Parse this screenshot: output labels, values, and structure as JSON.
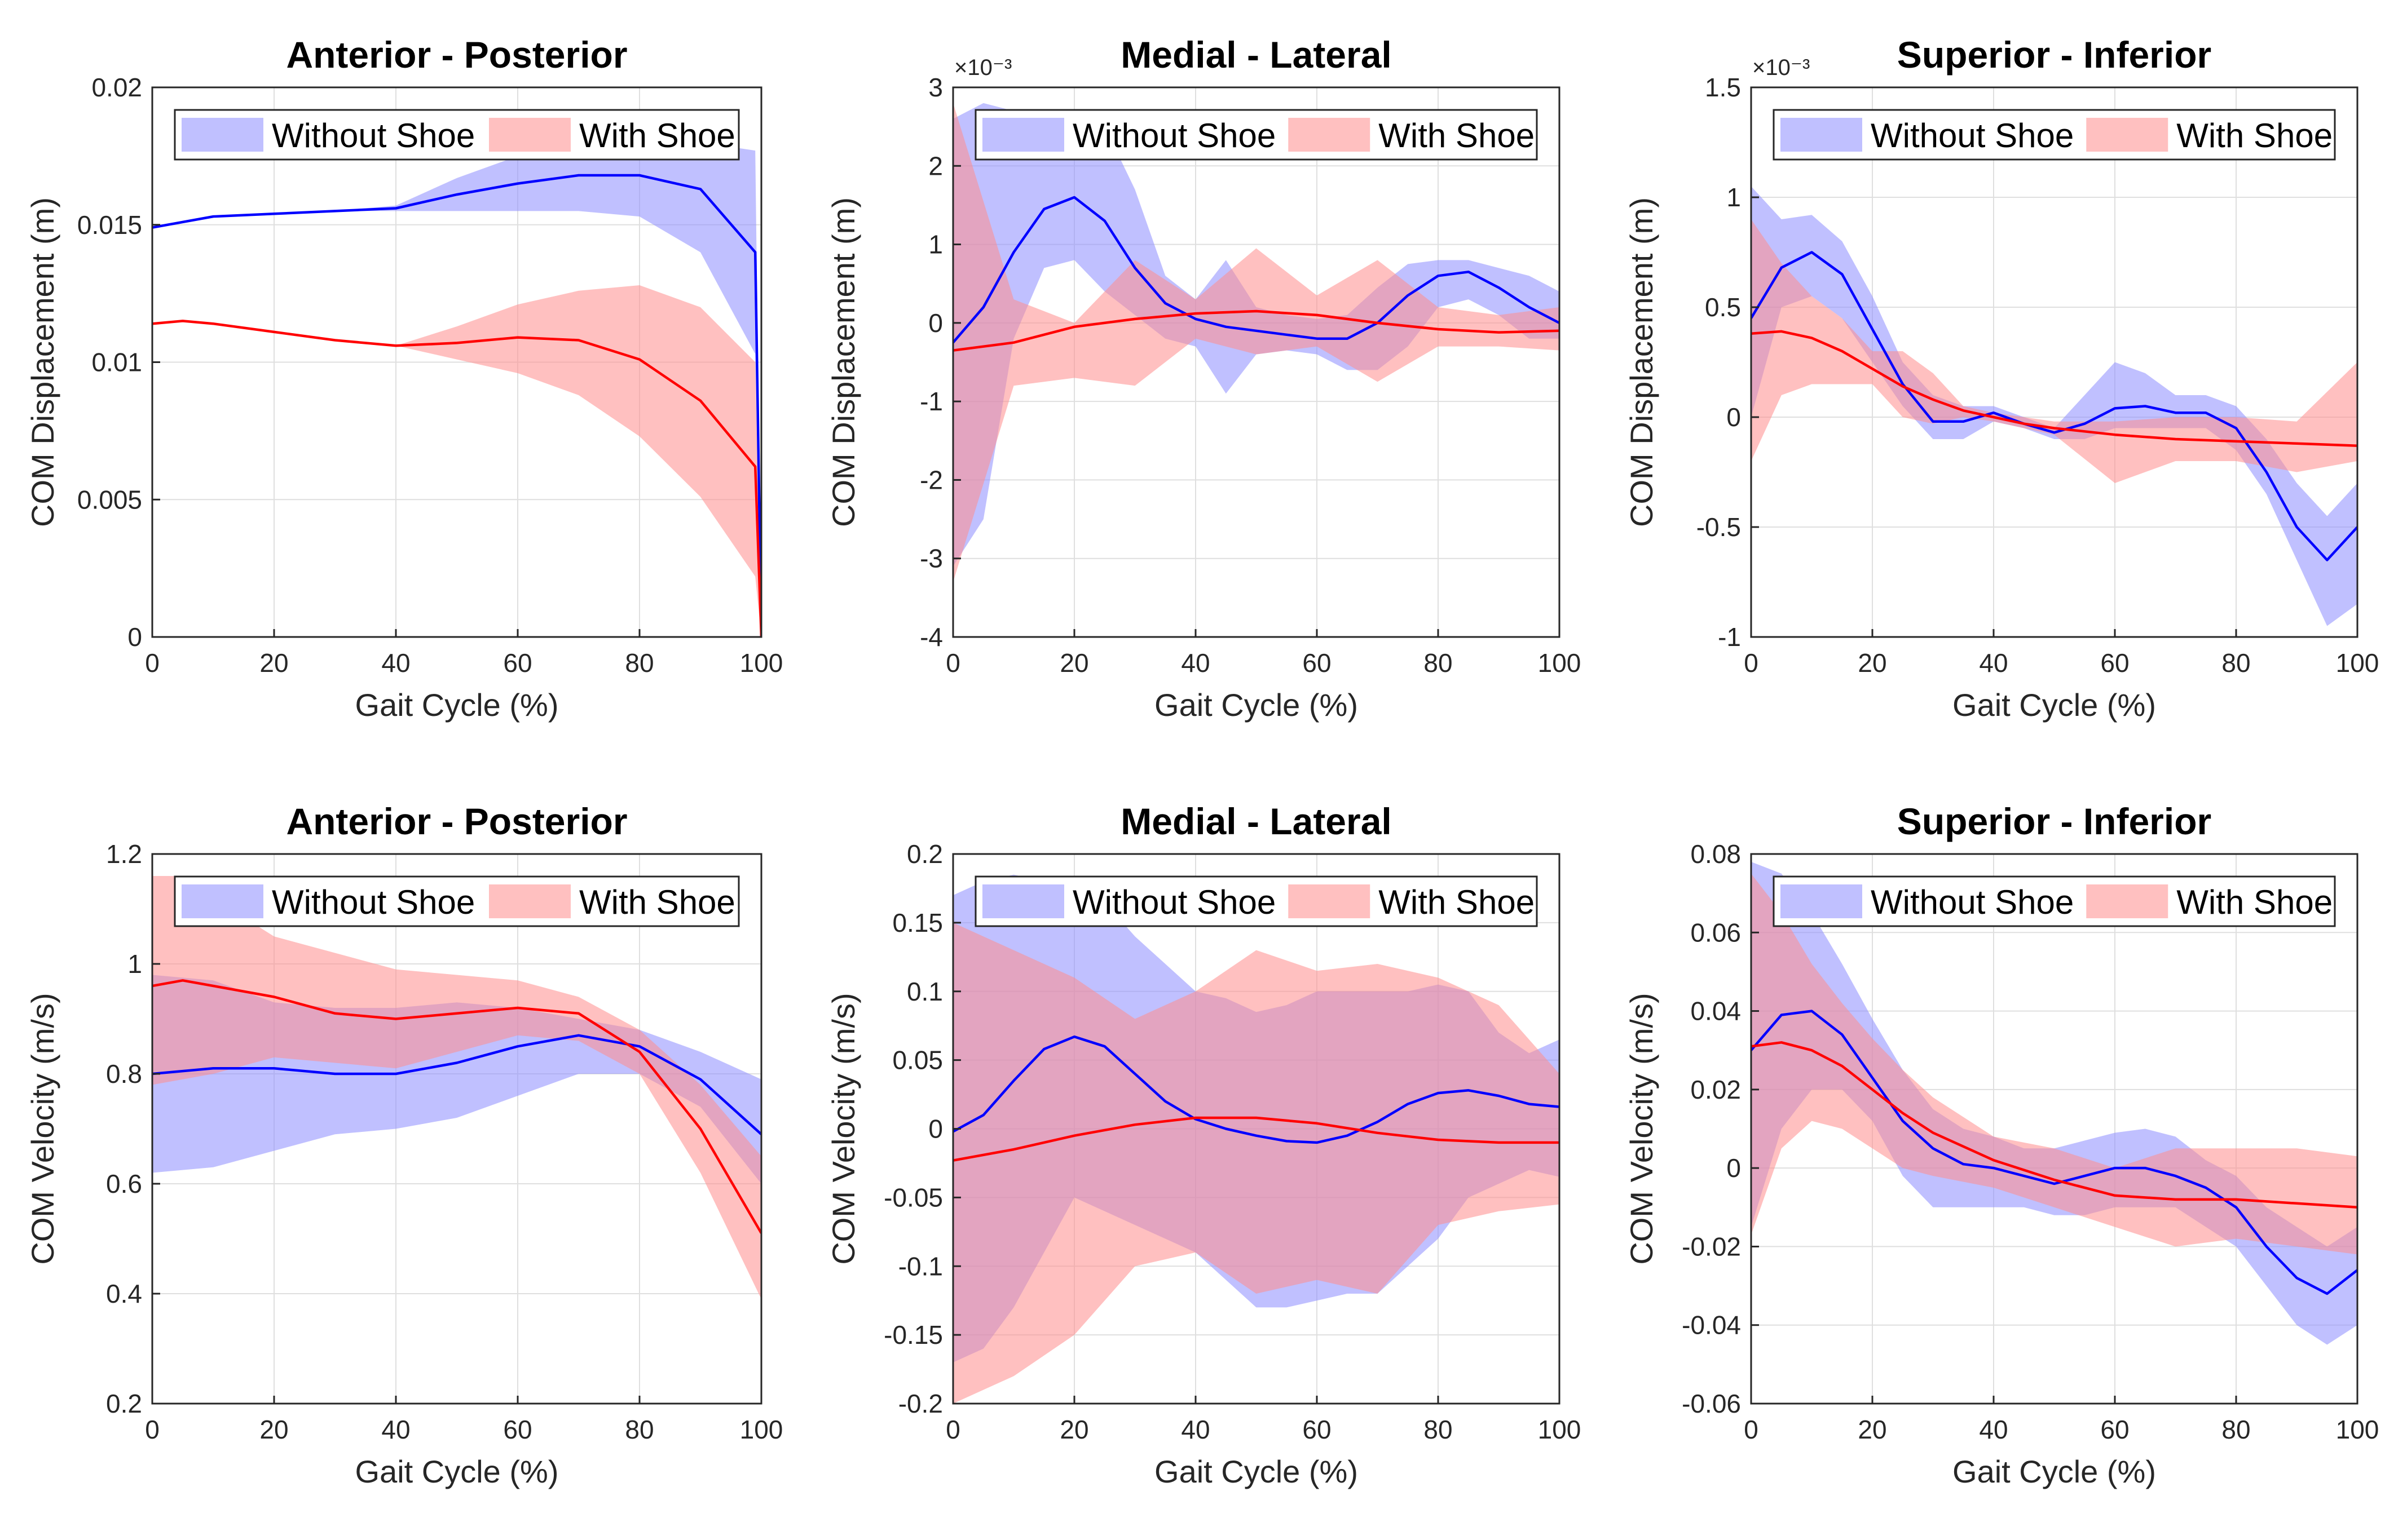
{
  "figure": {
    "colors": {
      "without_shoe": "#0000ff",
      "with_shoe": "#ff0000",
      "without_fill": "#8c8cff",
      "with_fill": "#ff8c8c"
    },
    "legend": [
      "Without Shoe",
      "With Shoe"
    ]
  },
  "chart_data": [
    {
      "type": "line",
      "panel": "top-left",
      "title": "Anterior - Posterior",
      "xlabel": "Gait Cycle (%)",
      "ylabel": "COM Displacement (m)",
      "xlim": [
        0,
        100
      ],
      "ylim": [
        0,
        0.02
      ],
      "xticks": [
        0,
        20,
        40,
        60,
        80,
        100
      ],
      "yticks": [
        0,
        0.005,
        0.01,
        0.015,
        0.02
      ],
      "ytick_labels": [
        "0",
        "0.005",
        "0.01",
        "0.015",
        "0.02"
      ],
      "exponent": "",
      "legend_position": "top",
      "series": [
        {
          "name": "Without Shoe",
          "x": [
            0,
            10,
            20,
            30,
            40,
            50,
            60,
            70,
            80,
            90,
            99,
            100
          ],
          "mean": [
            0.0149,
            0.0153,
            0.0154,
            0.0155,
            0.0156,
            0.0161,
            0.0165,
            0.0168,
            0.0168,
            0.0163,
            0.014,
            0.0
          ],
          "upper": [
            0.0149,
            0.0153,
            0.0154,
            0.0155,
            0.0157,
            0.0167,
            0.0175,
            0.018,
            0.0181,
            0.018,
            0.0177,
            0.0
          ],
          "lower": [
            0.0149,
            0.0153,
            0.0154,
            0.0155,
            0.0155,
            0.0155,
            0.0155,
            0.0155,
            0.0153,
            0.014,
            0.0103,
            0.0
          ]
        },
        {
          "name": "With Shoe",
          "x": [
            0,
            5,
            10,
            20,
            30,
            40,
            50,
            60,
            70,
            80,
            90,
            99,
            100
          ],
          "mean": [
            0.0114,
            0.0115,
            0.0114,
            0.0111,
            0.0108,
            0.0106,
            0.0107,
            0.0109,
            0.0108,
            0.0101,
            0.0086,
            0.0062,
            0.0
          ],
          "upper": [
            0.0114,
            0.0115,
            0.0114,
            0.0111,
            0.0108,
            0.0106,
            0.0113,
            0.0121,
            0.0126,
            0.0128,
            0.012,
            0.01,
            0.0
          ],
          "lower": [
            0.0114,
            0.0115,
            0.0114,
            0.0111,
            0.0108,
            0.0106,
            0.0101,
            0.0096,
            0.0088,
            0.0073,
            0.0051,
            0.0022,
            0.0
          ]
        }
      ]
    },
    {
      "type": "line",
      "panel": "top-middle",
      "title": "Medial - Lateral",
      "xlabel": "Gait Cycle (%)",
      "ylabel": "COM Displacement (m)",
      "xlim": [
        0,
        100
      ],
      "ylim": [
        -4,
        3
      ],
      "xticks": [
        0,
        20,
        40,
        60,
        80,
        100
      ],
      "yticks": [
        -4,
        -3,
        -2,
        -1,
        0,
        1,
        2,
        3
      ],
      "ytick_labels": [
        "-4",
        "-3",
        "-2",
        "-1",
        "0",
        "1",
        "2",
        "3"
      ],
      "exponent": "×10⁻³",
      "legend_position": "top",
      "series": [
        {
          "name": "Without Shoe",
          "x": [
            0,
            5,
            10,
            15,
            20,
            25,
            30,
            35,
            40,
            45,
            50,
            55,
            60,
            65,
            70,
            75,
            80,
            85,
            90,
            95,
            100
          ],
          "mean": [
            -0.25,
            0.2,
            0.9,
            1.45,
            1.6,
            1.3,
            0.7,
            0.25,
            0.05,
            -0.05,
            -0.1,
            -0.15,
            -0.2,
            -0.2,
            0.0,
            0.35,
            0.6,
            0.65,
            0.45,
            0.2,
            0.0
          ],
          "upper": [
            2.6,
            2.8,
            2.7,
            2.4,
            2.6,
            2.5,
            1.7,
            0.6,
            0.3,
            0.8,
            0.2,
            0.1,
            0.05,
            0.1,
            0.45,
            0.75,
            0.8,
            0.8,
            0.7,
            0.6,
            0.4
          ],
          "lower": [
            -3.1,
            -2.5,
            -0.2,
            0.7,
            0.8,
            0.4,
            0.1,
            -0.2,
            -0.3,
            -0.9,
            -0.4,
            -0.35,
            -0.4,
            -0.6,
            -0.6,
            -0.3,
            0.2,
            0.3,
            0.1,
            -0.2,
            -0.2
          ]
        },
        {
          "name": "With Shoe",
          "x": [
            0,
            10,
            20,
            30,
            40,
            50,
            60,
            70,
            80,
            90,
            100
          ],
          "mean": [
            -0.35,
            -0.25,
            -0.05,
            0.05,
            0.12,
            0.15,
            0.1,
            0.0,
            -0.08,
            -0.12,
            -0.1
          ],
          "upper": [
            2.8,
            0.3,
            0.0,
            0.8,
            0.3,
            0.95,
            0.35,
            0.8,
            0.2,
            0.1,
            0.2
          ],
          "lower": [
            -3.3,
            -0.8,
            -0.7,
            -0.8,
            -0.2,
            -0.4,
            -0.3,
            -0.75,
            -0.3,
            -0.3,
            -0.35
          ]
        }
      ]
    },
    {
      "type": "line",
      "panel": "top-right",
      "title": "Superior - Inferior",
      "xlabel": "Gait Cycle (%)",
      "ylabel": "COM Displacement (m)",
      "xlim": [
        0,
        100
      ],
      "ylim": [
        -1,
        1.5
      ],
      "xticks": [
        0,
        20,
        40,
        60,
        80,
        100
      ],
      "yticks": [
        -1,
        -0.5,
        0,
        0.5,
        1,
        1.5
      ],
      "ytick_labels": [
        "-1",
        "-0.5",
        "0",
        "0.5",
        "1",
        "1.5"
      ],
      "exponent": "×10⁻³",
      "legend_position": "top",
      "series": [
        {
          "name": "Without Shoe",
          "x": [
            0,
            5,
            10,
            15,
            20,
            25,
            30,
            35,
            40,
            45,
            50,
            55,
            60,
            65,
            70,
            75,
            80,
            85,
            90,
            95,
            100
          ],
          "mean": [
            0.45,
            0.68,
            0.75,
            0.65,
            0.4,
            0.15,
            -0.02,
            -0.02,
            0.02,
            -0.03,
            -0.07,
            -0.03,
            0.04,
            0.05,
            0.02,
            0.02,
            -0.05,
            -0.25,
            -0.5,
            -0.65,
            -0.5
          ],
          "upper": [
            1.05,
            0.9,
            0.92,
            0.8,
            0.55,
            0.25,
            0.1,
            0.05,
            0.05,
            0.0,
            -0.05,
            0.1,
            0.25,
            0.2,
            0.1,
            0.1,
            0.05,
            -0.1,
            -0.3,
            -0.45,
            -0.3
          ],
          "lower": [
            0.0,
            0.5,
            0.55,
            0.45,
            0.25,
            0.05,
            -0.1,
            -0.1,
            -0.02,
            -0.05,
            -0.1,
            -0.1,
            -0.05,
            -0.05,
            -0.05,
            -0.05,
            -0.15,
            -0.35,
            -0.65,
            -0.95,
            -0.85
          ]
        },
        {
          "name": "With Shoe",
          "x": [
            0,
            5,
            10,
            15,
            20,
            25,
            30,
            35,
            40,
            45,
            50,
            60,
            70,
            80,
            90,
            100
          ],
          "mean": [
            0.38,
            0.39,
            0.36,
            0.3,
            0.22,
            0.14,
            0.08,
            0.03,
            0.0,
            -0.03,
            -0.05,
            -0.08,
            -0.1,
            -0.11,
            -0.12,
            -0.13
          ],
          "upper": [
            0.9,
            0.7,
            0.55,
            0.45,
            0.3,
            0.3,
            0.2,
            0.05,
            0.02,
            0.0,
            -0.02,
            -0.02,
            0.0,
            0.0,
            -0.02,
            0.25
          ],
          "lower": [
            -0.2,
            0.1,
            0.15,
            0.15,
            0.15,
            0.0,
            -0.03,
            0.0,
            -0.02,
            -0.05,
            -0.08,
            -0.3,
            -0.2,
            -0.2,
            -0.25,
            -0.2
          ]
        }
      ]
    },
    {
      "type": "line",
      "panel": "bottom-left",
      "title": "Anterior - Posterior",
      "xlabel": "Gait Cycle (%)",
      "ylabel": "COM Velocity (m/s)",
      "xlim": [
        0,
        100
      ],
      "ylim": [
        0.2,
        1.2
      ],
      "xticks": [
        0,
        20,
        40,
        60,
        80,
        100
      ],
      "yticks": [
        0.2,
        0.4,
        0.6,
        0.8,
        1,
        1.2
      ],
      "ytick_labels": [
        "0.2",
        "0.4",
        "0.6",
        "0.8",
        "1",
        "1.2"
      ],
      "exponent": "",
      "legend_position": "top",
      "series": [
        {
          "name": "Without Shoe",
          "x": [
            0,
            10,
            20,
            30,
            40,
            50,
            60,
            70,
            80,
            90,
            100
          ],
          "mean": [
            0.8,
            0.81,
            0.81,
            0.8,
            0.8,
            0.82,
            0.85,
            0.87,
            0.85,
            0.79,
            0.69
          ],
          "upper": [
            0.98,
            0.97,
            0.93,
            0.92,
            0.92,
            0.93,
            0.92,
            0.9,
            0.88,
            0.84,
            0.79
          ],
          "lower": [
            0.62,
            0.63,
            0.66,
            0.69,
            0.7,
            0.72,
            0.76,
            0.8,
            0.8,
            0.74,
            0.6
          ]
        },
        {
          "name": "With Shoe",
          "x": [
            0,
            5,
            10,
            20,
            30,
            40,
            50,
            60,
            70,
            80,
            90,
            100
          ],
          "mean": [
            0.96,
            0.97,
            0.96,
            0.94,
            0.91,
            0.9,
            0.91,
            0.92,
            0.91,
            0.84,
            0.7,
            0.51
          ],
          "upper": [
            1.16,
            1.16,
            1.12,
            1.05,
            1.02,
            0.99,
            0.98,
            0.97,
            0.94,
            0.88,
            0.78,
            0.65
          ],
          "lower": [
            0.78,
            0.79,
            0.8,
            0.83,
            0.82,
            0.81,
            0.84,
            0.87,
            0.86,
            0.8,
            0.62,
            0.39
          ]
        }
      ]
    },
    {
      "type": "line",
      "panel": "bottom-middle",
      "title": "Medial - Lateral",
      "xlabel": "Gait Cycle (%)",
      "ylabel": "COM Velocity (m/s)",
      "xlim": [
        0,
        100
      ],
      "ylim": [
        -0.2,
        0.2
      ],
      "xticks": [
        0,
        20,
        40,
        60,
        80,
        100
      ],
      "yticks": [
        -0.2,
        -0.15,
        -0.1,
        -0.05,
        0,
        0.05,
        0.1,
        0.15,
        0.2
      ],
      "ytick_labels": [
        "-0.2",
        "-0.15",
        "-0.1",
        "-0.05",
        "0",
        "0.05",
        "0.1",
        "0.15",
        "0.2"
      ],
      "exponent": "",
      "legend_position": "top",
      "series": [
        {
          "name": "Without Shoe",
          "x": [
            0,
            5,
            10,
            15,
            20,
            25,
            30,
            35,
            40,
            45,
            50,
            55,
            60,
            65,
            70,
            75,
            80,
            85,
            90,
            95,
            100
          ],
          "mean": [
            -0.002,
            0.01,
            0.035,
            0.058,
            0.067,
            0.06,
            0.04,
            0.02,
            0.007,
            0.0,
            -0.005,
            -0.009,
            -0.01,
            -0.005,
            0.005,
            0.018,
            0.026,
            0.028,
            0.024,
            0.018,
            0.016
          ],
          "upper": [
            0.17,
            0.18,
            0.185,
            0.18,
            0.18,
            0.165,
            0.14,
            0.12,
            0.1,
            0.095,
            0.085,
            0.09,
            0.1,
            0.1,
            0.1,
            0.1,
            0.105,
            0.1,
            0.07,
            0.055,
            0.065
          ],
          "lower": [
            -0.17,
            -0.16,
            -0.13,
            -0.09,
            -0.05,
            -0.06,
            -0.07,
            -0.08,
            -0.09,
            -0.11,
            -0.13,
            -0.13,
            -0.125,
            -0.12,
            -0.12,
            -0.1,
            -0.08,
            -0.05,
            -0.04,
            -0.03,
            -0.035
          ]
        },
        {
          "name": "With Shoe",
          "x": [
            0,
            10,
            20,
            30,
            40,
            50,
            60,
            70,
            80,
            90,
            100
          ],
          "mean": [
            -0.023,
            -0.015,
            -0.005,
            0.003,
            0.008,
            0.008,
            0.004,
            -0.003,
            -0.008,
            -0.01,
            -0.01
          ],
          "upper": [
            0.15,
            0.13,
            0.11,
            0.08,
            0.1,
            0.13,
            0.115,
            0.12,
            0.11,
            0.09,
            0.04
          ],
          "lower": [
            -0.2,
            -0.18,
            -0.15,
            -0.1,
            -0.09,
            -0.12,
            -0.11,
            -0.12,
            -0.07,
            -0.06,
            -0.055
          ]
        }
      ]
    },
    {
      "type": "line",
      "panel": "bottom-right",
      "title": "Superior - Inferior",
      "xlabel": "Gait Cycle (%)",
      "ylabel": "COM Velocity (m/s)",
      "xlim": [
        0,
        100
      ],
      "ylim": [
        -0.06,
        0.08
      ],
      "xticks": [
        0,
        20,
        40,
        60,
        80,
        100
      ],
      "yticks": [
        -0.06,
        -0.04,
        -0.02,
        0,
        0.02,
        0.04,
        0.06,
        0.08
      ],
      "ytick_labels": [
        "-0.06",
        "-0.04",
        "-0.02",
        "0",
        "0.02",
        "0.04",
        "0.06",
        "0.08"
      ],
      "exponent": "",
      "legend_position": "top",
      "series": [
        {
          "name": "Without Shoe",
          "x": [
            0,
            5,
            10,
            15,
            20,
            25,
            30,
            35,
            40,
            45,
            50,
            55,
            60,
            65,
            70,
            75,
            80,
            85,
            90,
            95,
            100
          ],
          "mean": [
            0.03,
            0.039,
            0.04,
            0.034,
            0.023,
            0.012,
            0.005,
            0.001,
            0.0,
            -0.002,
            -0.004,
            -0.002,
            0.0,
            0.0,
            -0.002,
            -0.005,
            -0.01,
            -0.02,
            -0.028,
            -0.032,
            -0.026
          ],
          "upper": [
            0.078,
            0.075,
            0.065,
            0.052,
            0.038,
            0.025,
            0.015,
            0.01,
            0.008,
            0.005,
            0.005,
            0.007,
            0.009,
            0.01,
            0.008,
            0.002,
            -0.002,
            -0.01,
            -0.015,
            -0.02,
            -0.015
          ],
          "lower": [
            -0.015,
            0.01,
            0.02,
            0.02,
            0.012,
            -0.002,
            -0.01,
            -0.01,
            -0.01,
            -0.01,
            -0.012,
            -0.012,
            -0.01,
            -0.01,
            -0.01,
            -0.015,
            -0.02,
            -0.03,
            -0.04,
            -0.045,
            -0.04
          ]
        },
        {
          "name": "With Shoe",
          "x": [
            0,
            5,
            10,
            15,
            20,
            25,
            30,
            40,
            50,
            60,
            70,
            80,
            90,
            100
          ],
          "mean": [
            0.031,
            0.032,
            0.03,
            0.026,
            0.02,
            0.014,
            0.009,
            0.002,
            -0.003,
            -0.007,
            -0.008,
            -0.008,
            -0.009,
            -0.01
          ],
          "upper": [
            0.075,
            0.065,
            0.052,
            0.042,
            0.033,
            0.025,
            0.018,
            0.008,
            0.005,
            0.0,
            0.005,
            0.005,
            0.005,
            0.003
          ],
          "lower": [
            -0.017,
            0.005,
            0.012,
            0.01,
            0.005,
            0.0,
            -0.002,
            -0.005,
            -0.01,
            -0.015,
            -0.02,
            -0.018,
            -0.02,
            -0.022
          ]
        }
      ]
    }
  ]
}
